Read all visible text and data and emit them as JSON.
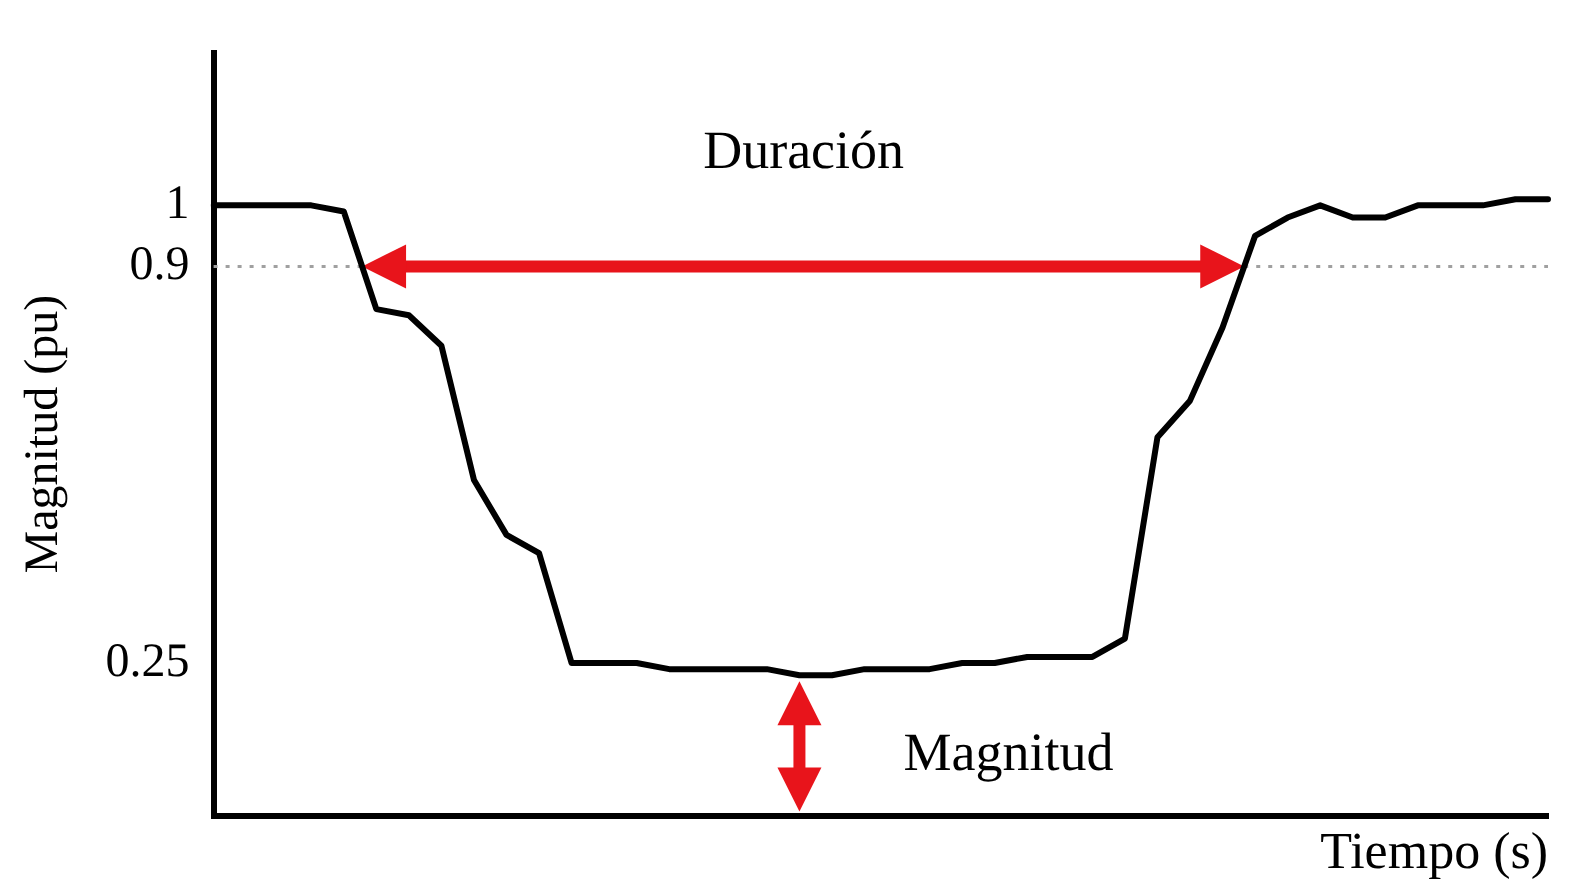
{
  "chart_data": {
    "type": "line",
    "xlabel": "Tiempo (s)",
    "ylabel": "Magnitud (pu)",
    "categories": [
      null,
      null,
      null,
      null,
      null,
      null,
      null,
      null,
      null,
      null,
      null,
      null,
      null,
      null,
      null,
      null,
      null,
      null,
      null,
      null,
      null,
      null,
      null,
      null,
      null,
      null,
      null,
      null,
      null,
      null,
      null,
      null,
      null,
      null,
      null,
      null,
      null,
      null,
      null,
      null,
      null,
      null
    ],
    "series": [
      {
        "color": "#000000",
        "values": [
          1,
          1,
          1,
          1,
          0.99,
          0.83,
          0.82,
          0.77,
          0.55,
          0.46,
          0.43,
          0.25,
          0.25,
          0.25,
          0.24,
          0.24,
          0.24,
          0.24,
          0.23,
          0.23,
          0.24,
          0.24,
          0.24,
          0.25,
          0.25,
          0.26,
          0.26,
          0.26,
          0.29,
          0.62,
          0.68,
          0.8,
          0.95,
          0.98,
          1,
          0.98,
          0.98,
          1,
          1,
          1,
          1.01,
          1.01
        ]
      }
    ],
    "ylim": [
      0,
      1.25
    ],
    "yticks": [
      0.25,
      0.9,
      1
    ],
    "tick_labels": "y",
    "grid": false,
    "legend": false,
    "marker": "none",
    "line_style": "solid",
    "ref_lines": [
      {
        "axis": "y",
        "value": 0.9,
        "color": "#a0a0a0",
        "line_style": "dotted"
      }
    ],
    "annotations": [
      "Duración",
      "Magnitud"
    ]
  }
}
